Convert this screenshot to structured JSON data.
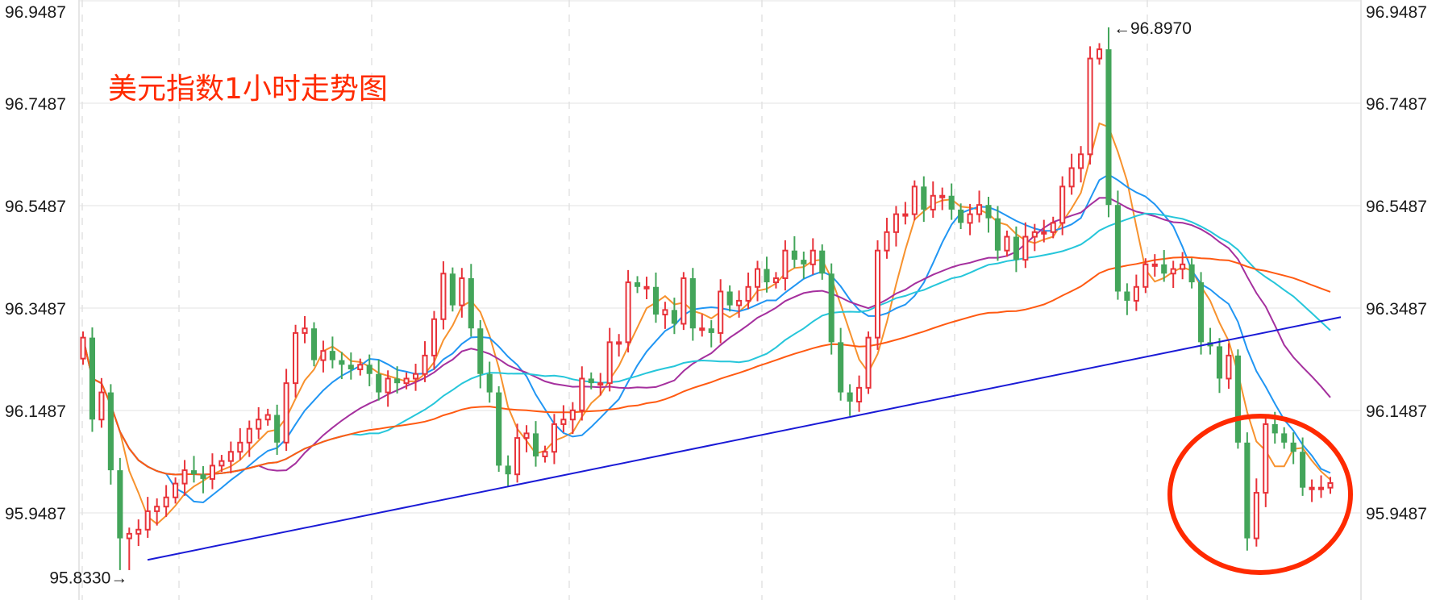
{
  "chart_data": {
    "type": "candlestick",
    "title": "美元指数1小时走势图",
    "y_ticks": [
      "96.9487",
      "96.7487",
      "96.5487",
      "96.3487",
      "96.1487",
      "95.9487"
    ],
    "ylim": [
      95.83,
      96.9487
    ],
    "grid": true,
    "colors": {
      "up": "#e8333a",
      "down": "#43a55a",
      "ma5": "#f7922e",
      "ma10": "#2196f3",
      "ma20": "#a5309e",
      "ma30": "#26c6da",
      "ma60": "#ff5a12",
      "trendline": "#1a1ad6",
      "circle": "#ff2a00"
    },
    "first_open": 96.25,
    "closes": [
      96.291,
      96.131,
      96.184,
      96.032,
      95.899,
      95.908,
      95.916,
      95.952,
      95.961,
      95.979,
      96.006,
      96.032,
      96.024,
      96.015,
      96.041,
      96.05,
      96.068,
      96.086,
      96.113,
      96.131,
      96.14,
      96.086,
      96.202,
      96.3,
      96.309,
      96.247,
      96.265,
      96.247,
      96.238,
      96.229,
      96.238,
      96.22,
      96.184,
      96.211,
      96.202,
      96.211,
      96.22,
      96.256,
      96.327,
      96.416,
      96.354,
      96.407,
      96.309,
      96.22,
      96.184,
      96.041,
      96.024,
      96.095,
      96.104,
      96.059,
      96.068,
      96.122,
      96.131,
      96.149,
      96.211,
      96.202,
      96.202,
      96.282,
      96.282,
      96.399,
      96.39,
      96.39,
      96.336,
      96.345,
      96.318,
      96.407,
      96.309,
      96.309,
      96.3,
      96.381,
      96.354,
      96.363,
      96.39,
      96.425,
      96.399,
      96.407,
      96.461,
      96.443,
      96.434,
      96.461,
      96.416,
      96.282,
      96.184,
      96.166,
      96.193,
      96.291,
      96.461,
      96.497,
      96.532,
      96.532,
      96.586,
      96.541,
      96.568,
      96.568,
      96.541,
      96.515,
      96.532,
      96.55,
      96.524,
      96.461,
      96.488,
      96.443,
      96.488,
      96.497,
      96.497,
      96.515,
      96.586,
      96.622,
      96.649,
      96.836,
      96.854,
      96.55,
      96.381,
      96.363,
      96.39,
      96.434,
      96.434,
      96.416,
      96.425,
      96.434,
      96.399,
      96.282,
      96.274,
      96.211,
      96.256,
      96.086,
      95.899,
      95.988,
      96.122,
      96.104,
      96.086,
      96.068,
      95.998,
      95.998,
      95.998,
      96.007
    ],
    "moving_averages": [
      5,
      10,
      20,
      30,
      60
    ],
    "annotations": {
      "high": "96.8970",
      "low": "95.8330",
      "high_arrow": "←96.8970",
      "low_arrow": "95.8330→"
    },
    "trendline": {
      "from_price": 95.857,
      "to_price": 96.331
    }
  }
}
